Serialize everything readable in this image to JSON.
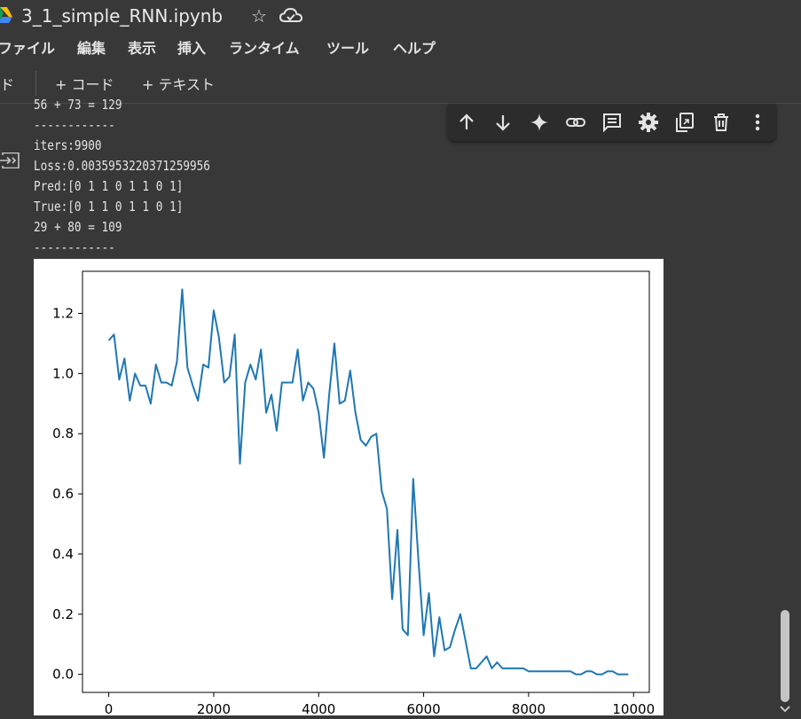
{
  "titlebar": {
    "notebook_title": "3_1_simple_RNN.ipynb",
    "star_icon": "star-icon",
    "cloud_icon": "cloud-icon"
  },
  "menu": {
    "items": [
      "ファイル",
      "編集",
      "表示",
      "挿入",
      "ランタイム",
      "ツール",
      "ヘルプ"
    ]
  },
  "toolbar": {
    "partial_label": "ド",
    "add_code": "+ コード",
    "add_text": "+ テキスト"
  },
  "cell_tools": {
    "icons": [
      "arrow-up-icon",
      "arrow-down-icon",
      "sparkle-icon",
      "link-icon",
      "comment-icon",
      "gear-icon",
      "mirror-cell-icon",
      "trash-icon",
      "more-vert-icon"
    ]
  },
  "output": {
    "lines": [
      "56 + 73 = 129",
      "------------",
      "iters:9900",
      "Loss:0.0035953220371259956",
      "Pred:[0 1 1 0 1 1 0 1]",
      "True:[0 1 1 0 1 1 0 1]",
      "29 + 80 = 109",
      "------------"
    ]
  },
  "chart_data": {
    "type": "line",
    "title": "",
    "xlabel": "",
    "ylabel": "",
    "xlim": [
      -500,
      10300
    ],
    "ylim": [
      -0.06,
      1.34
    ],
    "xticks": [
      0,
      2000,
      4000,
      6000,
      8000,
      10000
    ],
    "yticks": [
      0.0,
      0.2,
      0.4,
      0.6,
      0.8,
      1.0,
      1.2
    ],
    "ytick_labels": [
      "0.0",
      "0.2",
      "0.4",
      "0.6",
      "0.8",
      "1.0",
      "1.2"
    ],
    "line_color": "#1f77b4",
    "grid": false,
    "series": [
      {
        "x": [
          0,
          100,
          200,
          300,
          400,
          500,
          600,
          700,
          800,
          900,
          1000,
          1100,
          1200,
          1300,
          1400,
          1500,
          1600,
          1700,
          1800,
          1900,
          2000,
          2100,
          2200,
          2300,
          2400,
          2500,
          2600,
          2700,
          2800,
          2900,
          3000,
          3100,
          3200,
          3300,
          3400,
          3500,
          3600,
          3700,
          3800,
          3900,
          4000,
          4100,
          4200,
          4300,
          4400,
          4500,
          4600,
          4700,
          4800,
          4900,
          5000,
          5100,
          5200,
          5300,
          5400,
          5500,
          5600,
          5700,
          5800,
          5900,
          6000,
          6100,
          6200,
          6300,
          6400,
          6500,
          6600,
          6700,
          6800,
          6900,
          7000,
          7100,
          7200,
          7300,
          7400,
          7500,
          7600,
          7700,
          7800,
          7900,
          8000,
          8100,
          8200,
          8300,
          8400,
          8500,
          8600,
          8700,
          8800,
          8900,
          9000,
          9100,
          9200,
          9300,
          9400,
          9500,
          9600,
          9700,
          9800,
          9900
        ],
        "y": [
          1.11,
          1.13,
          0.98,
          1.05,
          0.91,
          1.0,
          0.96,
          0.96,
          0.9,
          1.03,
          0.97,
          0.97,
          0.96,
          1.04,
          1.28,
          1.02,
          0.96,
          0.91,
          1.03,
          1.02,
          1.21,
          1.12,
          0.97,
          0.99,
          1.13,
          0.7,
          0.97,
          1.03,
          0.98,
          1.08,
          0.87,
          0.93,
          0.81,
          0.97,
          0.97,
          0.97,
          1.08,
          0.91,
          0.97,
          0.95,
          0.87,
          0.72,
          0.93,
          1.1,
          0.9,
          0.91,
          1.01,
          0.87,
          0.78,
          0.76,
          0.79,
          0.8,
          0.61,
          0.55,
          0.25,
          0.48,
          0.15,
          0.13,
          0.65,
          0.38,
          0.13,
          0.27,
          0.06,
          0.19,
          0.08,
          0.09,
          0.15,
          0.2,
          0.11,
          0.02,
          0.02,
          0.04,
          0.06,
          0.02,
          0.04,
          0.02,
          0.02,
          0.02,
          0.02,
          0.02,
          0.01,
          0.01,
          0.01,
          0.01,
          0.01,
          0.01,
          0.01,
          0.01,
          0.01,
          0.0,
          0.0,
          0.01,
          0.01,
          0.0,
          0.0,
          0.01,
          0.01,
          0.0,
          0.0,
          0.0
        ]
      }
    ]
  }
}
